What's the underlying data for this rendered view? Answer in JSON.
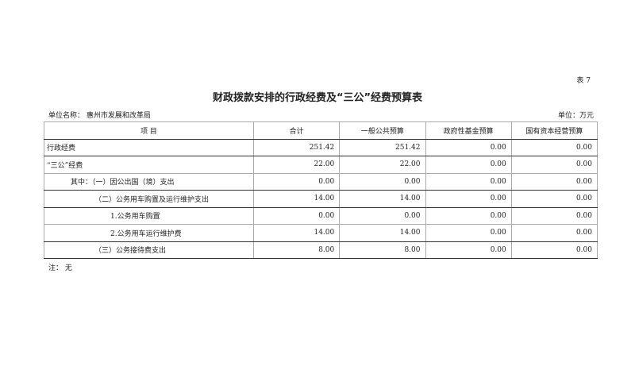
{
  "table_no": "表 7",
  "title": "财政拨款安排的行政经费及“三公”经费预算表",
  "unit_name": "单位名称：  惠州市发展和改革局",
  "unit": "单位：万元",
  "headers": [
    "项          目",
    "合计",
    "一般公共预算",
    "政府性基金预算",
    "国有资本经营预算"
  ],
  "rows": [
    {
      "item": "行政经费",
      "indent": 0,
      "values": [
        "251.42",
        "251.42",
        "0.00",
        "0.00"
      ]
    },
    {
      "item": "“三公”经费",
      "indent": 0,
      "values": [
        "22.00",
        "22.00",
        "0.00",
        "0.00"
      ]
    },
    {
      "item": "其中：（一）因公出国（境）支出",
      "indent": 1,
      "values": [
        "0.00",
        "0.00",
        "0.00",
        "0.00"
      ]
    },
    {
      "item": "（二）公务用车购置及运行维护支出",
      "indent": 2,
      "values": [
        "14.00",
        "14.00",
        "0.00",
        "0.00"
      ]
    },
    {
      "item": "1.公务用车购置",
      "indent": 3,
      "values": [
        "0.00",
        "0.00",
        "0.00",
        "0.00"
      ]
    },
    {
      "item": "2.公务用车运行维护费",
      "indent": 3,
      "values": [
        "14.00",
        "14.00",
        "0.00",
        "0.00"
      ]
    },
    {
      "item": "（三）公务接待费支出",
      "indent": 2,
      "values": [
        "8.00",
        "8.00",
        "0.00",
        "0.00"
      ]
    }
  ],
  "note": "注：  无"
}
